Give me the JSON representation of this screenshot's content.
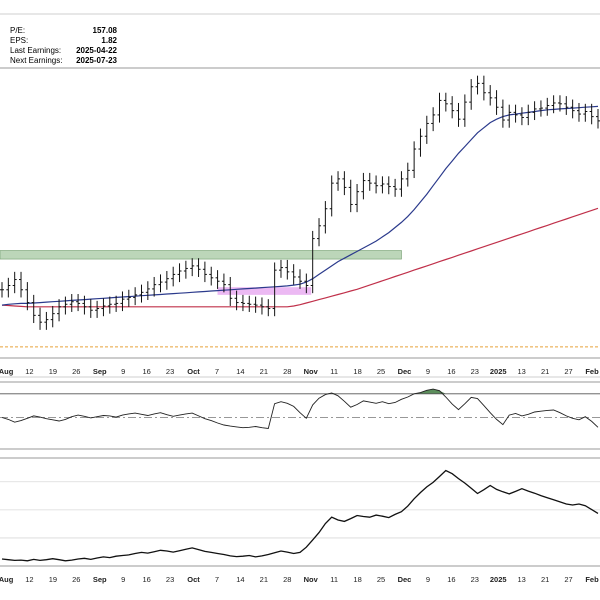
{
  "info": {
    "pe_label": "P/E:",
    "pe_value": "157.08",
    "eps_label": "EPS:",
    "eps_value": "1.82",
    "last_label": "Last Earnings:",
    "last_value": "2025-04-22",
    "next_label": "Next Earnings:",
    "next_value": "2025-07-23"
  },
  "colors": {
    "price_bar": "#111111",
    "ma_fast": "#2b3a8c",
    "ma_slow": "#c0304a",
    "resistance_zone": "#9fc49b",
    "highlight_zone": "#e6a2ef",
    "dashed_line": "#e8a23a",
    "osc_fill": "#3f7a3f"
  },
  "chart_data": {
    "type": "ohlc",
    "x_tick_labels": [
      "Aug",
      "12",
      "19",
      "26",
      "Sep",
      "9",
      "16",
      "23",
      "Oct",
      "7",
      "14",
      "21",
      "28",
      "Nov",
      "11",
      "18",
      "25",
      "Dec",
      "9",
      "16",
      "23",
      "2025",
      "13",
      "21",
      "27",
      "Feb"
    ],
    "bold_tick_labels": [
      "Aug",
      "Sep",
      "Oct",
      "Nov",
      "Dec",
      "2025",
      "Feb"
    ],
    "price_close": [
      40,
      40.5,
      41.2,
      40,
      38.5,
      37,
      36.2,
      36.5,
      37.2,
      38,
      38.3,
      38.6,
      38.4,
      38,
      37.6,
      37.8,
      38.1,
      38.3,
      38.4,
      38.9,
      39.1,
      39.4,
      39.7,
      40.1,
      40.6,
      40.9,
      41.3,
      41.8,
      42.2,
      42.5,
      42.8,
      42.4,
      41.8,
      41.4,
      41,
      40.6,
      39,
      38.5,
      38.4,
      38.3,
      38.2,
      38,
      37.8,
      42.3,
      42.6,
      42.1,
      41.5,
      41,
      40.5,
      46,
      47.5,
      49.5,
      52.5,
      53,
      52,
      50,
      51.5,
      52.8,
      52.5,
      52.2,
      52.4,
      52.1,
      51.8,
      53,
      54,
      56.5,
      58,
      59.5,
      60.5,
      62.2,
      61.8,
      61,
      60,
      62,
      63.8,
      64.2,
      63.1,
      62.5,
      61.4,
      59.9,
      60.8,
      60.5,
      60.2,
      60.8,
      61.2,
      61.3,
      61.6,
      61.9,
      61.8,
      61.4,
      61,
      60.6,
      60.9,
      60.3,
      59.8
    ],
    "ma_fast": [
      38.2,
      38.3,
      38.35,
      38.4,
      38.4,
      38.45,
      38.5,
      38.55,
      38.6,
      38.65,
      38.7,
      38.75,
      38.8,
      38.85,
      38.9,
      38.95,
      39,
      39.05,
      39.1,
      39.15,
      39.2,
      39.25,
      39.3,
      39.35,
      39.4,
      39.45,
      39.5,
      39.55,
      39.6,
      39.65,
      39.7,
      39.75,
      39.8,
      39.85,
      39.9,
      39.95,
      40,
      40.05,
      40.1,
      40.15,
      40.2,
      40.25,
      40.3,
      40.35,
      40.4,
      40.45,
      40.55,
      40.65,
      40.9,
      41.3,
      41.8,
      42.3,
      42.8,
      43.3,
      43.7,
      44.1,
      44.5,
      44.9,
      45.3,
      45.7,
      46.2,
      46.7,
      47.3,
      47.9,
      48.6,
      49.4,
      50.3,
      51.2,
      52.2,
      53.2,
      54.2,
      55.1,
      56,
      56.8,
      57.6,
      58.4,
      59,
      59.6,
      60,
      60.3,
      60.5,
      60.6,
      60.7,
      60.8,
      60.9,
      61,
      61.1,
      61.15,
      61.2,
      61.25,
      61.3,
      61.35,
      61.4,
      61.45,
      61.5
    ],
    "ma_slow": [
      38.2,
      38.15,
      38.1,
      38.05,
      38.0,
      38.0,
      38.0,
      38.0,
      38.0,
      38.0,
      38.0,
      38.0,
      38.0,
      38.0,
      38.0,
      38.0,
      38.0,
      38.0,
      38.0,
      38.0,
      38.0,
      38.0,
      38.0,
      38.0,
      38.0,
      38.0,
      38.0,
      38.0,
      38.0,
      38.0,
      38.0,
      38.0,
      38.0,
      38.0,
      38.0,
      38.0,
      38.0,
      38.0,
      38.0,
      38.0,
      38.0,
      38.0,
      38.0,
      38.0,
      38.0,
      38.0,
      38.1,
      38.25,
      38.45,
      38.65,
      38.85,
      39.05,
      39.25,
      39.45,
      39.65,
      39.85,
      40.05,
      40.3,
      40.55,
      40.8,
      41.05,
      41.3,
      41.55,
      41.8,
      42.05,
      42.3,
      42.55,
      42.8,
      43.05,
      43.3,
      43.55,
      43.8,
      44.05,
      44.3,
      44.55,
      44.8,
      45.05,
      45.3,
      45.55,
      45.8,
      46.05,
      46.3,
      46.55,
      46.8,
      47.05,
      47.3,
      47.55,
      47.8,
      48.05,
      48.3,
      48.55,
      48.8,
      49.05,
      49.3,
      49.55
    ],
    "resistance_zone": {
      "x_from": "Aug",
      "x_to": "Dec",
      "y_low": 43.6,
      "y_high": 44.6
    },
    "highlight_zone": {
      "x_from": "Oct",
      "x_to": "28",
      "y_low": 39.4,
      "y_high": 40.3
    },
    "dashed_level": 33.3,
    "oscillator": [
      0,
      -0.5,
      -1.2,
      -0.8,
      -0.2,
      0.4,
      0.1,
      -0.3,
      -0.6,
      -0.9,
      -0.5,
      0.2,
      0.6,
      0.3,
      -0.1,
      0.2,
      0.5,
      0.4,
      0.1,
      0.6,
      0.9,
      1.1,
      0.8,
      0.5,
      0.9,
      1.2,
      0.7,
      0.3,
      0.6,
      0.9,
      1.1,
      0.4,
      -0.3,
      -0.8,
      -1.4,
      -1.9,
      -2.2,
      -2.4,
      -2.6,
      -2.5,
      -2.3,
      -2.6,
      -2.8,
      3.5,
      4.0,
      3.6,
      2.8,
      1.2,
      -0.2,
      3.2,
      4.9,
      5.8,
      6.2,
      5.5,
      4.1,
      2.6,
      3.3,
      4.2,
      3.9,
      3.6,
      4.0,
      3.5,
      3.8,
      4.6,
      5.2,
      6.0,
      6.3,
      6.9,
      7.2,
      6.8,
      5.2,
      3.4,
      2.0,
      3.5,
      5.1,
      4.8,
      3.0,
      1.2,
      -0.5,
      -1.8,
      0.6,
      1.0,
      0.4,
      0.8,
      1.4,
      1.6,
      1.8,
      1.9,
      1.2,
      0.4,
      -0.2,
      -0.6,
      0.2,
      -1.0,
      -2.5
    ],
    "oscillator_ref_lines": [
      6,
      0
    ],
    "lower_series": [
      2,
      1.8,
      1.6,
      1.7,
      1.5,
      1.9,
      1.6,
      1.8,
      2.1,
      1.8,
      1.5,
      1.7,
      2.0,
      2.2,
      1.9,
      2.3,
      2.6,
      2.4,
      2.8,
      3.0,
      3.2,
      3.6,
      3.9,
      3.7,
      4.1,
      4.5,
      4.3,
      4.0,
      4.4,
      4.8,
      5.2,
      4.7,
      4.2,
      3.9,
      3.6,
      3.3,
      2.9,
      2.7,
      2.8,
      3.0,
      2.6,
      2.9,
      3.3,
      3.8,
      4.3,
      4.0,
      3.6,
      3.9,
      5.4,
      7.5,
      9.6,
      12.2,
      14.0,
      13.2,
      12.8,
      13.6,
      14.5,
      14.2,
      14.0,
      14.6,
      14.3,
      13.9,
      14.8,
      15.6,
      17.2,
      19.3,
      21.1,
      22.7,
      24.0,
      25.7,
      27.4,
      26.5,
      25.1,
      23.8,
      22.3,
      20.8,
      21.9,
      23.1,
      22.0,
      21.3,
      20.7,
      21.4,
      22.2,
      21.5,
      20.9,
      20.2,
      19.6,
      19.0,
      18.4,
      17.8,
      17.5,
      17.8,
      17.3,
      16.2,
      15.1
    ]
  }
}
